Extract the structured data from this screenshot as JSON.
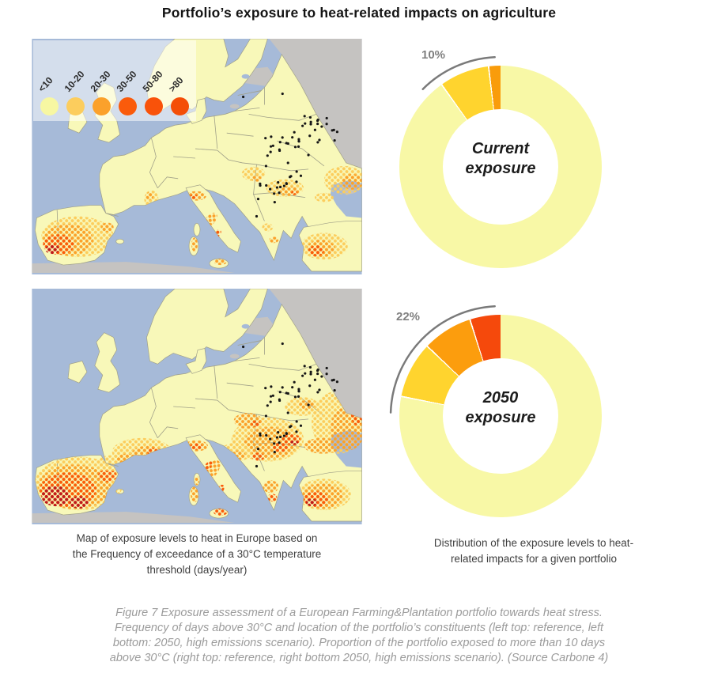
{
  "title": "Portfolio’s exposure to heat-related impacts on agriculture",
  "map_legend": {
    "categories": [
      "<10",
      "10-20",
      "20-30",
      "30-50",
      "50-80",
      ">80"
    ],
    "colors": [
      "#F7F7A2",
      "#FCCD5D",
      "#FBA12B",
      "#FA5B0B",
      "#F9520A",
      "#F44E07"
    ],
    "unit": "days/year"
  },
  "maps": {
    "sea_color": "#A6BAD8",
    "land_color": "#F8F8B9",
    "nodata_color": "#C5C3C1",
    "border_color": "#A0A088",
    "constituent_dot_color": "#161616",
    "deep_red": "#BE1A1E",
    "top_map_label": "current / reference scenario",
    "bottom_map_label": "2050, high emissions scenario"
  },
  "captions": {
    "left_lines": [
      "Map of exposure levels to heat in Europe based on",
      "the Frequency of exceedance of a 30°C temperature",
      "threshold (days/year)"
    ],
    "right_lines": [
      "Distribution of the exposure levels to heat-",
      "related impacts for a given portfolio"
    ]
  },
  "figure_caption_lines": [
    "Figure 7 Exposure assessment of a European Farming&Plantation portfolio towards heat stress.",
    "Frequency of days above 30°C and location of the portfolio’s constituents (left top: reference, left",
    "bottom: 2050, high emissions scenario). Proportion of the portfolio exposed to more than 10 days",
    "above 30°C (right top: reference, right bottom  2050, high emissions scenario). (Source Carbone 4)"
  ],
  "chart_data": [
    {
      "type": "donut",
      "center_label_line1": "Current",
      "center_label_line2": "exposure",
      "callout": "10%",
      "callout_color": "#7f7f7f",
      "slices": [
        {
          "label": "<10 days above 30°C",
          "value": 90,
          "color": "#F8F8A6"
        },
        {
          "label": "10-20 days above 30°C",
          "value": 8,
          "color": "#FFD42E"
        },
        {
          "label": "20-30 days above 30°C",
          "value": 2,
          "color": "#F99C0B"
        }
      ]
    },
    {
      "type": "donut",
      "center_label_line1": "2050",
      "center_label_line2": "exposure",
      "callout": "22%",
      "callout_color": "#7f7f7f",
      "slices": [
        {
          "label": "<10 days above 30°C",
          "value": 78,
          "color": "#F8F8A6"
        },
        {
          "label": "10-20 days above 30°C",
          "value": 9,
          "color": "#FFD42E"
        },
        {
          "label": "20-30 days above 30°C",
          "value": 8,
          "color": "#FC9D0D"
        },
        {
          "label": "30-50 days above 30°C",
          "value": 5,
          "color": "#F5490C"
        }
      ]
    }
  ]
}
